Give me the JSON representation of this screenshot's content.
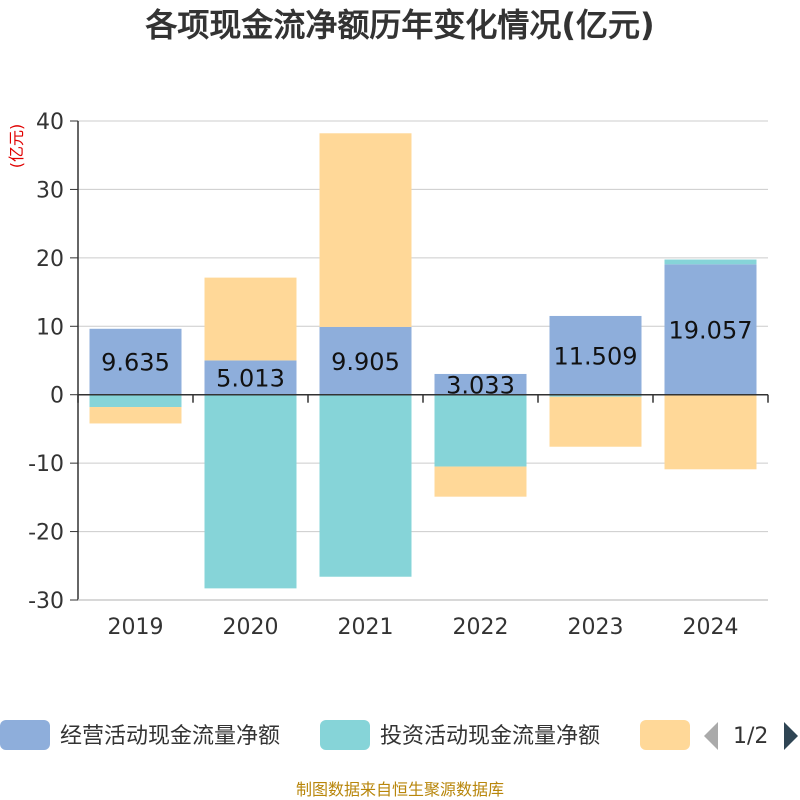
{
  "chart_data": {
    "type": "bar",
    "stacked": true,
    "title": "各项现金流净额历年变化情况(亿元)",
    "ylabel": "(亿元)",
    "categories": [
      "2019",
      "2020",
      "2021",
      "2022",
      "2023",
      "2024"
    ],
    "ylim": [
      -30,
      40
    ],
    "yticks": [
      40,
      30,
      20,
      10,
      0,
      -10,
      -20,
      -30
    ],
    "series": [
      {
        "name": "经营活动现金流量净额",
        "color": "#8eaedb",
        "values": [
          9.635,
          5.013,
          9.905,
          3.033,
          11.509,
          19.057
        ],
        "labels": [
          "9.635",
          "5.013",
          "9.905",
          "3.033",
          "11.509",
          "19.057"
        ]
      },
      {
        "name": "投资活动现金流量净额",
        "color": "#86d4d8",
        "values": [
          -1.8,
          -28.3,
          -26.6,
          -10.5,
          -0.3,
          0.7
        ]
      },
      {
        "name": "",
        "color": "#ffd898",
        "values": [
          -2.4,
          12.1,
          28.3,
          -4.4,
          -7.3,
          -10.9
        ]
      }
    ],
    "legend": {
      "page": "1/2"
    }
  },
  "footer": "制图数据来自恒生聚源数据库"
}
